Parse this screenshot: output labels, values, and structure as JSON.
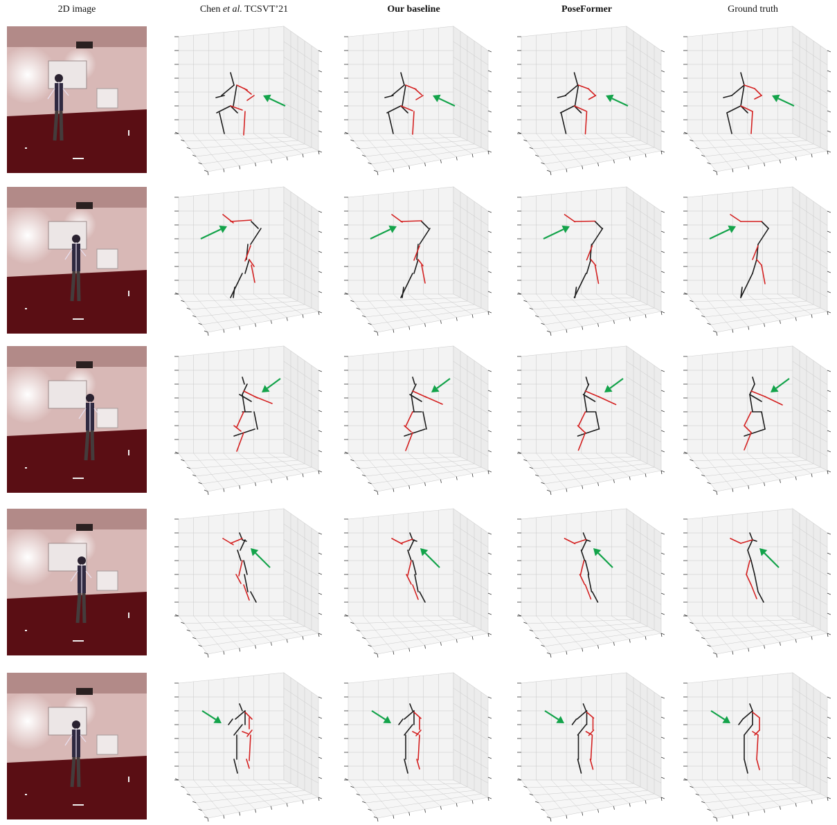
{
  "headers": {
    "col0": "2D image",
    "col1_pre": "Chen ",
    "col1_italic": "et al.",
    "col1_post": " TCSVT’21",
    "col2": "Our baseline",
    "col3": "PoseFormer",
    "col4": "Ground truth"
  },
  "colors": {
    "skeleton_left": "#1a1a1a",
    "skeleton_right": "#d42020",
    "arrow": "#13a34a",
    "grid": "#c8c8c8",
    "pane": "#f3f3f3",
    "carpet": "#5a0e14",
    "wall": "#d8b8b6"
  },
  "rows": [
    {
      "arrow_dir": "left-up"
    },
    {
      "arrow_dir": "right-up"
    },
    {
      "arrow_dir": "left-down"
    },
    {
      "arrow_dir": "left-up"
    },
    {
      "arrow_dir": "right-down"
    }
  ]
}
